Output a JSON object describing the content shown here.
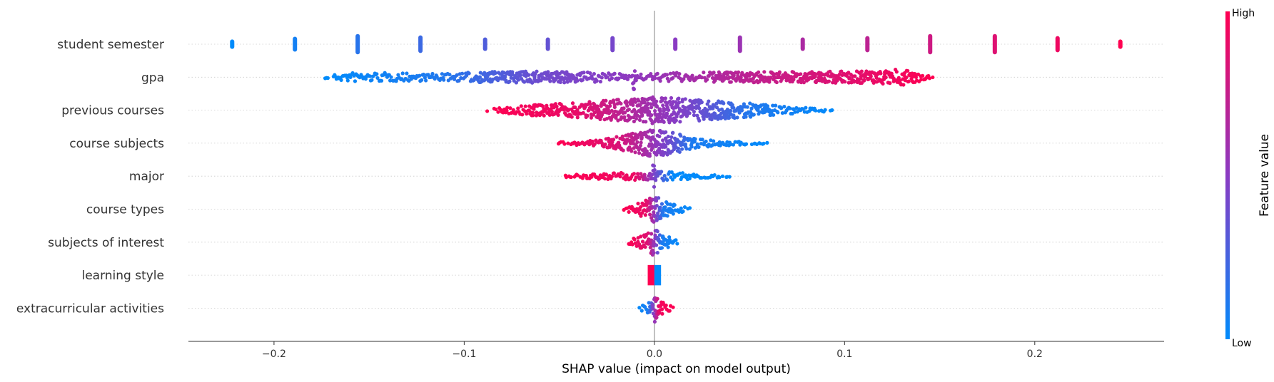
{
  "chart_data": {
    "type": "scatter",
    "subtype": "shap-beeswarm",
    "title": "",
    "xlabel": "SHAP value (impact on model output)",
    "ylabel": "",
    "xlim": [
      -0.245,
      0.268
    ],
    "xticks": [
      -0.2,
      -0.1,
      0.0,
      0.1,
      0.2
    ],
    "xtick_labels": [
      "−0.2",
      "−0.1",
      "0.0",
      "0.1",
      "0.2"
    ],
    "grid": false,
    "colorbar": {
      "title": "Feature value",
      "high_label": "High",
      "low_label": "Low",
      "low_color": "#008bfb",
      "high_color": "#ff0051"
    },
    "features": [
      {
        "name": "student semester",
        "kind": "discrete",
        "values": [
          -0.222,
          -0.189,
          -0.156,
          -0.123,
          -0.089,
          -0.056,
          -0.022,
          0.011,
          0.045,
          0.078,
          0.112,
          0.145,
          0.179,
          0.212,
          0.245
        ],
        "feature_levels": [
          0.0,
          0.071,
          0.143,
          0.214,
          0.286,
          0.357,
          0.429,
          0.5,
          0.571,
          0.643,
          0.714,
          0.786,
          0.857,
          0.929,
          1.0
        ],
        "heights": [
          0.35,
          0.55,
          0.75,
          0.65,
          0.5,
          0.5,
          0.6,
          0.5,
          0.65,
          0.5,
          0.6,
          0.75,
          0.75,
          0.6,
          0.35
        ]
      },
      {
        "name": "gpa",
        "kind": "continuous",
        "min": -0.173,
        "max": 0.147,
        "density": [
          [
            -0.173,
            0.1
          ],
          [
            -0.16,
            0.35
          ],
          [
            -0.13,
            0.3
          ],
          [
            -0.11,
            0.25
          ],
          [
            -0.09,
            0.4
          ],
          [
            -0.06,
            0.45
          ],
          [
            -0.03,
            0.35
          ],
          [
            -0.012,
            0.2
          ],
          [
            -0.011,
            1.0
          ],
          [
            -0.009,
            0.2
          ],
          [
            0.01,
            0.35
          ],
          [
            0.05,
            0.4
          ],
          [
            0.08,
            0.4
          ],
          [
            0.11,
            0.45
          ],
          [
            0.13,
            0.6
          ],
          [
            0.147,
            0.1
          ]
        ],
        "color_stops": [
          [
            -0.173,
            0.0
          ],
          [
            -0.11,
            0.12
          ],
          [
            -0.06,
            0.4
          ],
          [
            0.0,
            0.55
          ],
          [
            0.06,
            0.75
          ],
          [
            0.147,
            1.0
          ]
        ]
      },
      {
        "name": "previous courses",
        "kind": "continuous",
        "min": -0.088,
        "max": 0.095,
        "density": [
          [
            -0.088,
            0.1
          ],
          [
            -0.07,
            0.35
          ],
          [
            -0.04,
            0.55
          ],
          [
            -0.02,
            0.8
          ],
          [
            -0.004,
            0.9
          ],
          [
            0.0,
            1.0
          ],
          [
            0.02,
            0.8
          ],
          [
            0.04,
            0.65
          ],
          [
            0.06,
            0.4
          ],
          [
            0.08,
            0.2
          ],
          [
            0.095,
            0.08
          ]
        ],
        "color_stops": [
          [
            -0.088,
            1.0
          ],
          [
            -0.04,
            0.9
          ],
          [
            -0.01,
            0.65
          ],
          [
            0.02,
            0.42
          ],
          [
            0.05,
            0.12
          ],
          [
            0.095,
            0.0
          ]
        ]
      },
      {
        "name": "course subjects",
        "kind": "continuous",
        "min": -0.051,
        "max": 0.06,
        "density": [
          [
            -0.051,
            0.08
          ],
          [
            -0.03,
            0.25
          ],
          [
            -0.015,
            0.6
          ],
          [
            -0.005,
            0.95
          ],
          [
            0.0,
            1.0
          ],
          [
            0.008,
            0.85
          ],
          [
            0.02,
            0.4
          ],
          [
            0.035,
            0.2
          ],
          [
            0.05,
            0.1
          ],
          [
            0.06,
            0.06
          ]
        ],
        "color_stops": [
          [
            -0.051,
            1.0
          ],
          [
            -0.02,
            0.85
          ],
          [
            -0.004,
            0.62
          ],
          [
            0.008,
            0.4
          ],
          [
            0.02,
            0.1
          ],
          [
            0.06,
            0.0
          ]
        ]
      },
      {
        "name": "major",
        "kind": "continuous",
        "min": -0.048,
        "max": 0.04,
        "density": [
          [
            -0.048,
            0.12
          ],
          [
            -0.02,
            0.25
          ],
          [
            -0.006,
            0.3
          ],
          [
            -0.002,
            0.35
          ],
          [
            0.0,
            1.0
          ],
          [
            0.002,
            0.35
          ],
          [
            0.015,
            0.25
          ],
          [
            0.03,
            0.12
          ],
          [
            0.04,
            0.08
          ]
        ],
        "color_stops": [
          [
            -0.048,
            1.0
          ],
          [
            -0.01,
            0.92
          ],
          [
            -0.001,
            0.5
          ],
          [
            0.001,
            0.4
          ],
          [
            0.01,
            0.0
          ],
          [
            0.04,
            0.0
          ]
        ]
      },
      {
        "name": "course types",
        "kind": "continuous",
        "min": -0.016,
        "max": 0.02,
        "density": [
          [
            -0.016,
            0.15
          ],
          [
            -0.006,
            0.55
          ],
          [
            -0.002,
            0.9
          ],
          [
            0.0,
            1.0
          ],
          [
            0.004,
            0.7
          ],
          [
            0.012,
            0.3
          ],
          [
            0.02,
            0.08
          ]
        ],
        "color_stops": [
          [
            -0.016,
            1.0
          ],
          [
            -0.004,
            0.9
          ],
          [
            0.0,
            0.55
          ],
          [
            0.005,
            0.1
          ],
          [
            0.02,
            0.0
          ]
        ]
      },
      {
        "name": "subjects of interest",
        "kind": "continuous",
        "min": -0.014,
        "max": 0.014,
        "density": [
          [
            -0.014,
            0.15
          ],
          [
            -0.006,
            0.5
          ],
          [
            -0.001,
            0.95
          ],
          [
            0.0,
            1.0
          ],
          [
            0.005,
            0.6
          ],
          [
            0.01,
            0.25
          ],
          [
            0.014,
            0.1
          ]
        ],
        "color_stops": [
          [
            -0.014,
            1.0
          ],
          [
            -0.003,
            0.85
          ],
          [
            0.0,
            0.55
          ],
          [
            0.004,
            0.1
          ],
          [
            0.014,
            0.0
          ]
        ]
      },
      {
        "name": "learning style",
        "kind": "two-block",
        "blocks": [
          {
            "min": -0.0035,
            "max": 0.0,
            "level": 1.0,
            "height": 0.75
          },
          {
            "min": 0.0,
            "max": 0.0035,
            "level": 0.0,
            "height": 0.75
          }
        ]
      },
      {
        "name": "extracurricular activities",
        "kind": "continuous",
        "min": -0.009,
        "max": 0.011,
        "density": [
          [
            -0.009,
            0.1
          ],
          [
            -0.004,
            0.3
          ],
          [
            -0.001,
            0.6
          ],
          [
            0.0,
            1.0
          ],
          [
            0.002,
            0.7
          ],
          [
            0.006,
            0.3
          ],
          [
            0.011,
            0.1
          ]
        ],
        "color_stops": [
          [
            -0.009,
            0.0
          ],
          [
            -0.003,
            0.1
          ],
          [
            0.0,
            0.55
          ],
          [
            0.003,
            0.95
          ],
          [
            0.011,
            1.0
          ]
        ]
      }
    ]
  }
}
